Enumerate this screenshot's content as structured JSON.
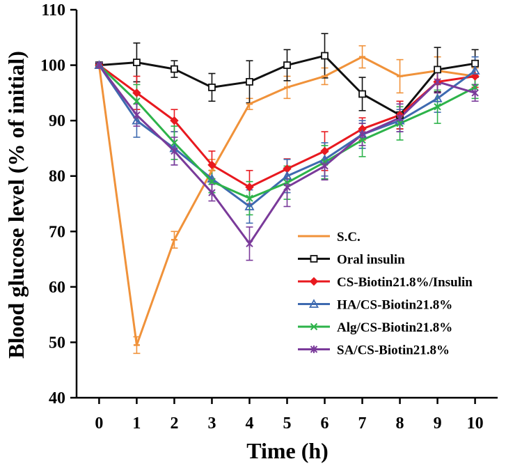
{
  "chart_data": {
    "type": "line",
    "xlabel": "Time (h)",
    "ylabel": "Blood glucose level (% of initial)",
    "x": [
      0,
      1,
      2,
      3,
      4,
      5,
      6,
      7,
      8,
      9,
      10
    ],
    "xlim": [
      -0.6,
      10.6
    ],
    "ylim": [
      40,
      110
    ],
    "xticks": [
      "0",
      "1",
      "2",
      "3",
      "4",
      "5",
      "6",
      "7",
      "8",
      "9",
      "10"
    ],
    "yticks": [
      "40",
      "50",
      "60",
      "70",
      "80",
      "90",
      "100",
      "110"
    ],
    "grid": false,
    "legend_position": "lower-right",
    "series": [
      {
        "name": "S.C.",
        "color": "#F0923A",
        "marker": "dash",
        "values": [
          100,
          49.5,
          68.5,
          81,
          93,
          96,
          98,
          101.5,
          98,
          99,
          98
        ],
        "errors": [
          0,
          1.5,
          1.5,
          2,
          1,
          2,
          1.5,
          2,
          3,
          2.5,
          1.5
        ]
      },
      {
        "name": "Oral insulin",
        "color": "#111111",
        "marker": "square",
        "values": [
          100,
          100.5,
          99.3,
          96,
          97,
          100,
          101.7,
          94.8,
          91,
          99.2,
          100.3
        ],
        "errors": [
          0,
          3.5,
          1.5,
          2.5,
          3.8,
          2.8,
          4,
          3,
          2.5,
          4,
          2.5
        ]
      },
      {
        "name": "CS-Biotin21.8%/Insulin",
        "color": "#E8191F",
        "marker": "diamond",
        "values": [
          100,
          95,
          90,
          82,
          78,
          81.3,
          84.5,
          88.5,
          91,
          97,
          98
        ],
        "errors": [
          0,
          3,
          2,
          2.5,
          3,
          1.8,
          3.5,
          2,
          2.5,
          2,
          2
        ]
      },
      {
        "name": "HA/CS-Biotin21.8%",
        "color": "#3E6AB0",
        "marker": "triangle",
        "values": [
          100,
          90,
          85,
          79.5,
          74.5,
          80,
          83,
          87.5,
          90,
          94,
          99
        ],
        "errors": [
          0,
          3,
          3,
          2.5,
          3,
          3,
          3,
          2.5,
          2,
          2.5,
          2.5
        ]
      },
      {
        "name": "Alg/CS-Biotin21.8%",
        "color": "#2DB34A",
        "marker": "x",
        "values": [
          100,
          93.5,
          86,
          79,
          76,
          78.8,
          82.5,
          86.5,
          89.5,
          92.5,
          96
        ],
        "errors": [
          0,
          3,
          3,
          2,
          3,
          3,
          3,
          3,
          3,
          3,
          2
        ]
      },
      {
        "name": "SA/CS-Biotin21.8%",
        "color": "#7A3A9A",
        "marker": "star",
        "values": [
          100,
          91,
          84.5,
          77,
          67.8,
          78,
          81.8,
          87.5,
          90.5,
          97,
          95
        ],
        "errors": [
          0,
          2,
          2.5,
          1.5,
          3,
          3.5,
          2.5,
          2,
          2.5,
          2,
          1.5
        ]
      }
    ]
  }
}
